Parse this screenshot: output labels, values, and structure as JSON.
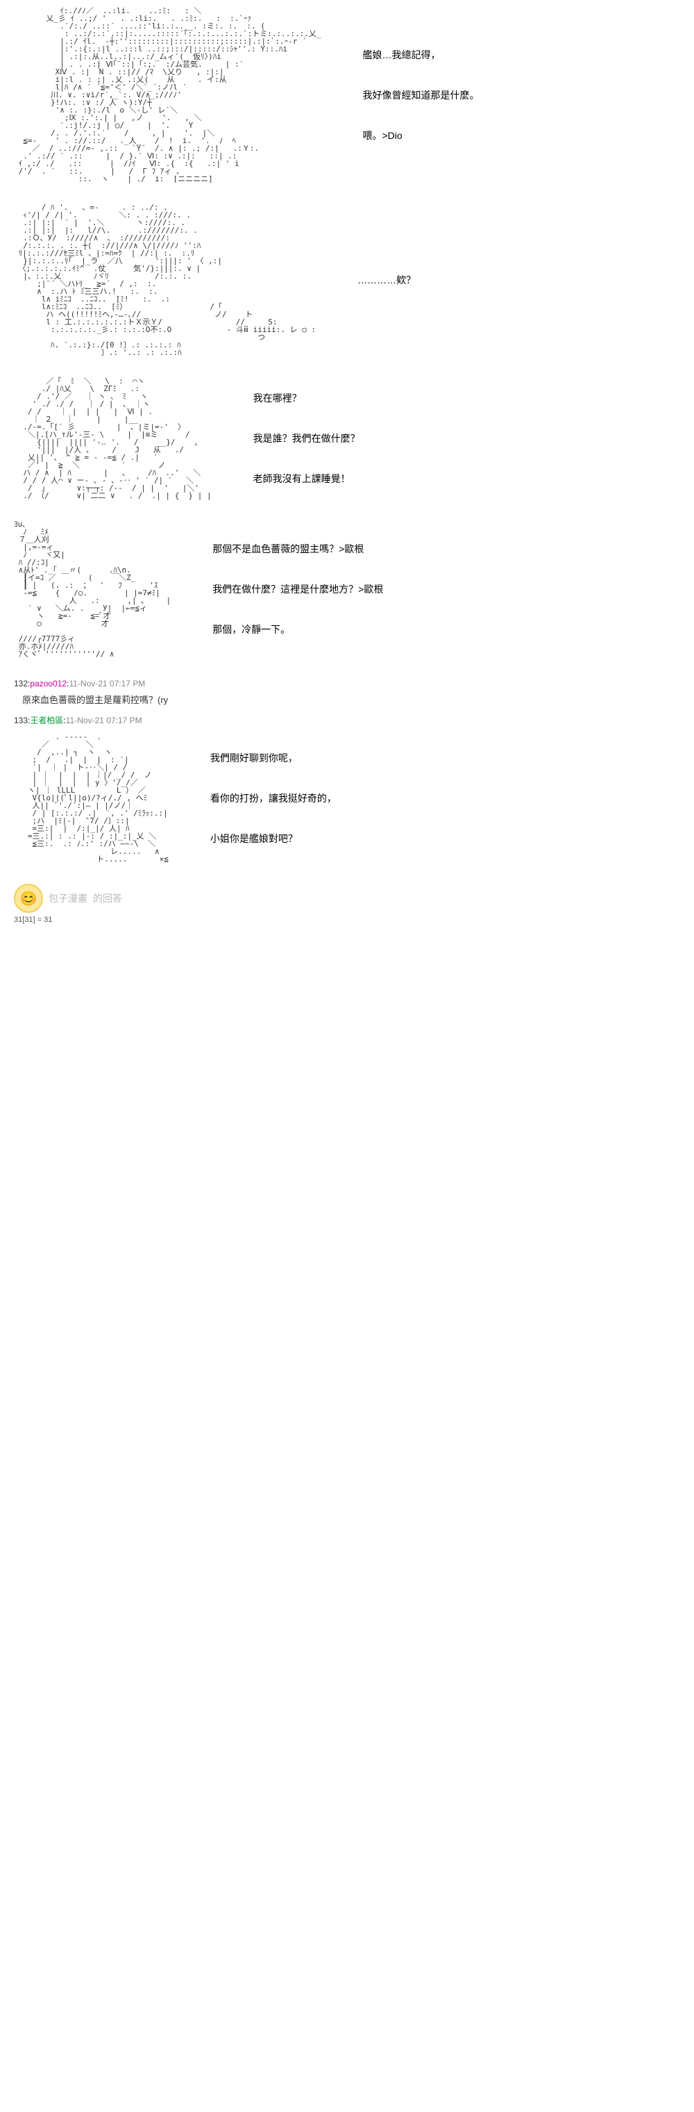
{
  "panels": [
    {
      "dialogue": [
        "艦娘…我總記得，",
        "我好像曾經知道那是什麼。",
        "喂。>Dio"
      ]
    },
    {
      "dialogue": [
        "…………欸？"
      ]
    },
    {
      "dialogue": [
        "我在哪裡？",
        "我是誰？我們在做什麼？",
        "老師我沒有上課睡覺！"
      ]
    },
    {
      "dialogue": [
        "那個不是血色薔薇的盟主嗎？>歐根",
        "我們在做什麼？這裡是什麼地方？>歐根",
        "那個，冷靜一下。"
      ]
    },
    {
      "dialogue": [
        "我們剛好聊到你呢，",
        "看你的打扮，讓我挺好奇的，",
        "小姐你是艦娘對吧？"
      ]
    }
  ],
  "comments": [
    {
      "id": "132",
      "user": "pazoo012",
      "userClass": "comment-user1",
      "time": "11-Nov-21 07:17 PM",
      "text": "原來血色薔薇的盟主是蘿莉控嗎？(ry"
    },
    {
      "id": "133",
      "user": "王者柏區",
      "userClass": "comment-user2",
      "time": "11-Nov-21 07:17 PM",
      "text": ""
    }
  ],
  "footer": {
    "logoText": "的回答",
    "pageNum": "31[31] = 31",
    "brandFaint": "包子漫畫"
  },
  "ascii": {
    "p1": "          ｲ:.//ﾉ／  ..:li.    ..:ﾐ:   : ＼\n       乂_彡 ｲ ..;/ '   . .:li:.   . .:ﾐ:.   :  :.`ｰｧ\n          .′/:./ ..::′ ....::'li:.:..__. :ミ:. :.  :. (\n           : ..:/:.:′.::|:.....:::::´｢:.:.:...:.:.`:トミ:.:..:.:.乂_\n          |.:/ ｲl.  ‐┼:'':::::::::|::::::::::;:::::|.:|:`:.ｰ-r ´\n          |:'.:{:.:|l ..:::l ..::;:::/|:::::/::ｼｬ''.: Y::.ﾊi\n          | .:|:.从..l..:|...:/_厶ィ′(  仮ﾘ〉)ﾊi\n          | . . .:| Ⅵ｢¨::|「:;.  :/ム芸気.     | :′\n         XⅣ . :|  N . ::|// /ﾏ  \\乂り   , :|:|\n         i|:l . : ;| .乂 .:乂(    从     . イ:从\n         l|ﾊ /∧ ′ ´≦='＜' /＼`_´:ノﾉl ′\n        川. ∨. :∨i/r′,_`:. V/∧_;///ﾉ'\n        }!ハ:. :∨ :/ 人 ヽ):Y/┼\n         '∧ :. :}:./l  o ＼-し' レ′＼\n           ;Ⅸ :.':.| |   ,ノ    '.   , ＼\n          ′.:j!/.:j | ◯/     |  '.    Y\n        /. . /.'.:.′    /     , |    '.  |＼\n  ≦=-    ' . ://.::/   ._人_   /  !  i.  '.  ﾉ  ﾍ\n    ／  / ..:///=- ,.::   `Y´  /. ∧ |: .; /:|   .:Ｙ:.\n  .' .:// ′ .::     |  / }.′ Ⅵ: :∨ .:|:   ::| .:\n ｲ ,:/ ./   .::      |  /ﾉｲ   Ⅵ: .{  :{   .:| ' i\n /'/  . ′   ::.      |   /  Γ ﾌ ｱィ 、\n              ::.  ヽ    | ./  i:  [ニニニニ]\n",
    "p2": "      / ﾊ '.   、=-     . : ../: .\n  ｨ'/| / /| '.         ＼: . . :///:. .\n  .:| |:|  ′ |  '.＼       丶:////:. .\n  .:| |:|  |:   l//\\.      .:///////:. .\n  .:Ｏ、У/  ://///∧  、 ://///////:\n  /:.:.:. . :. ┼(  ://|///∧ \\/|////ﾉ '':ﾊ\n ﾘ|:.:.:///ｾ三ﾐl 、|:=ﾊ=ｸ  | //:| :.  :.ﾘ\n  }|:.:.:..ﾘ｢  |_ラ  ／八       ':|||: ' 〈 ,:|\n 〈;.:.:.:.:.ｲﾐ^  .仗      気'/}:|||:. ∨ |\n  |、:.:.乂       ﾉヾﾘ          /:.:. :.\n     ;|¨´ ＼ハﾄﾘ_  ≧=´  / ,:  :.\n     ∧  :.ハ ﾄ ﾐ三三ハ.!   :.  :.\n      l∧ iﾐﾆｺ  ..ﾆｺ..  [ﾐ!   :.  .:\n      l∧:ﾐﾆｺ  ..ﾆｺ..  [ﾐ）                  /「\n       ハ ヘ((!!!!!ﾐヘ,-…-､//                ノ/    ト\n       l : 工.:.:.:.:.:.:トＸ示Ｙ/                //     S:\n        :.:.:.:.:._彡.: :.:.:О不:.О            - 斗ⅲ iiiii:. レ ○ :\n                                                     つ\n        ﾊ. ′.:.:}:./[0 !〕.: .:.:.: ﾊ\n                   〕.: '..: .: .:.:ﾊ\n",
    "p3": "       ／「  ﾐ  ＼   \\  :  ⌒ヽ\n      ./ |ﾊ乂    \\  ΖΓﾐ   .:\n     / .'/ ／   ｜ ヽ 、 ﾐ   ヽ\n    ' ./ ./ /   ｜ / |  、 ｜ヽ\n   / /    ｜ |  | |   |  Ⅵ | .\n    ｜ ２   ｜     |     |__  \n  ./-=.「[′ 彡         |  、|ミ|=-'  〉\n   ＼|.[ハ_тル'-三- \\     |  |≡ミ      /\n     {||||  |||| '-‥ '.   /    __}/    ,\n     '|||  |/人 、    /    J   从   ./\n   乂|| '、 ^ ≧ = - -=≦ / .|   ′\n   ／' |  ≧  ＼         ′       ノ\n  ハ / ∧  | ﾊ       |   、    /ﾊ  ..'   ＼\n  / / / 人⌒ ∨ ー- ､ - 、-‥ ' ′ /| ′   ＼\n   /  」      ∨:┬─┬: /--  / | |  '   |＼'\n  ./ （/      ∨| 二二 ∨   . /  .| | {  } | |\n",
    "p4": "ﾖu､\n  ﾉ   ﾐﾒ\n ７＿人刈\n  |,=-=ィ\n  ﾉ    ヾ又|\n ﾊ //:ｺ|\n ∧从ﾄ' ._｢ ＿〃(      .ﾊ\\n.\n  ┃イ=ｺ ／       (    ￣＼Z_\n  ┃ |   (. .:  ；  '   ﾌ      'ｽ\n  -=≦    {   /○.        | |=7≠ﾐ|\n            人   .:      ,| ､　   |\n   ′ ∨   ＼ム. .    У|  |←=≦ィ\n     ヽ   ≧=-    ≦=ﾟ才\n     ○             才\n\n ////┌7777彡ィ\n 亦.ホﾒ|/////ﾊ\n ｱくヾ゛'''''''''''// ∧\n",
    "p5": "         . -----  .\n      ／        ＼\n     /  ,..| ┐  ヽ  ヽ\n    ;  /   .|  |  |  : ′|\n    ′|  ｜ |  ト-‥＼| / /\n    | ｜  |  |  | ｜|/ _/ /  ノ\n    | ｜  |  |  | y 〉'/_/／\n   ヽ| ｜ lLLL         L ） ／\n    V{lo||(ﾟl||o)/?ィ/./ , へﾐ\n    人|| `'./′:|‒ | |/ノ/｜\n    / | [:.:.:/ .|  ′, .' /ﾐﾗｯ:.:|\n    ;ハ  |ﾐ|-|  ″7/ /〕::| \n    =三:|  |  /:|_|/ 人| ﾊ\n   =三.:| : .: |-: / :|_:|_乂 ＼\n    ≦三:.  .: ﾉ.:' :/ハ ~~-\\  ＼\n                     レ.....   ∧\n                  ト.....       ×≦\n"
  }
}
